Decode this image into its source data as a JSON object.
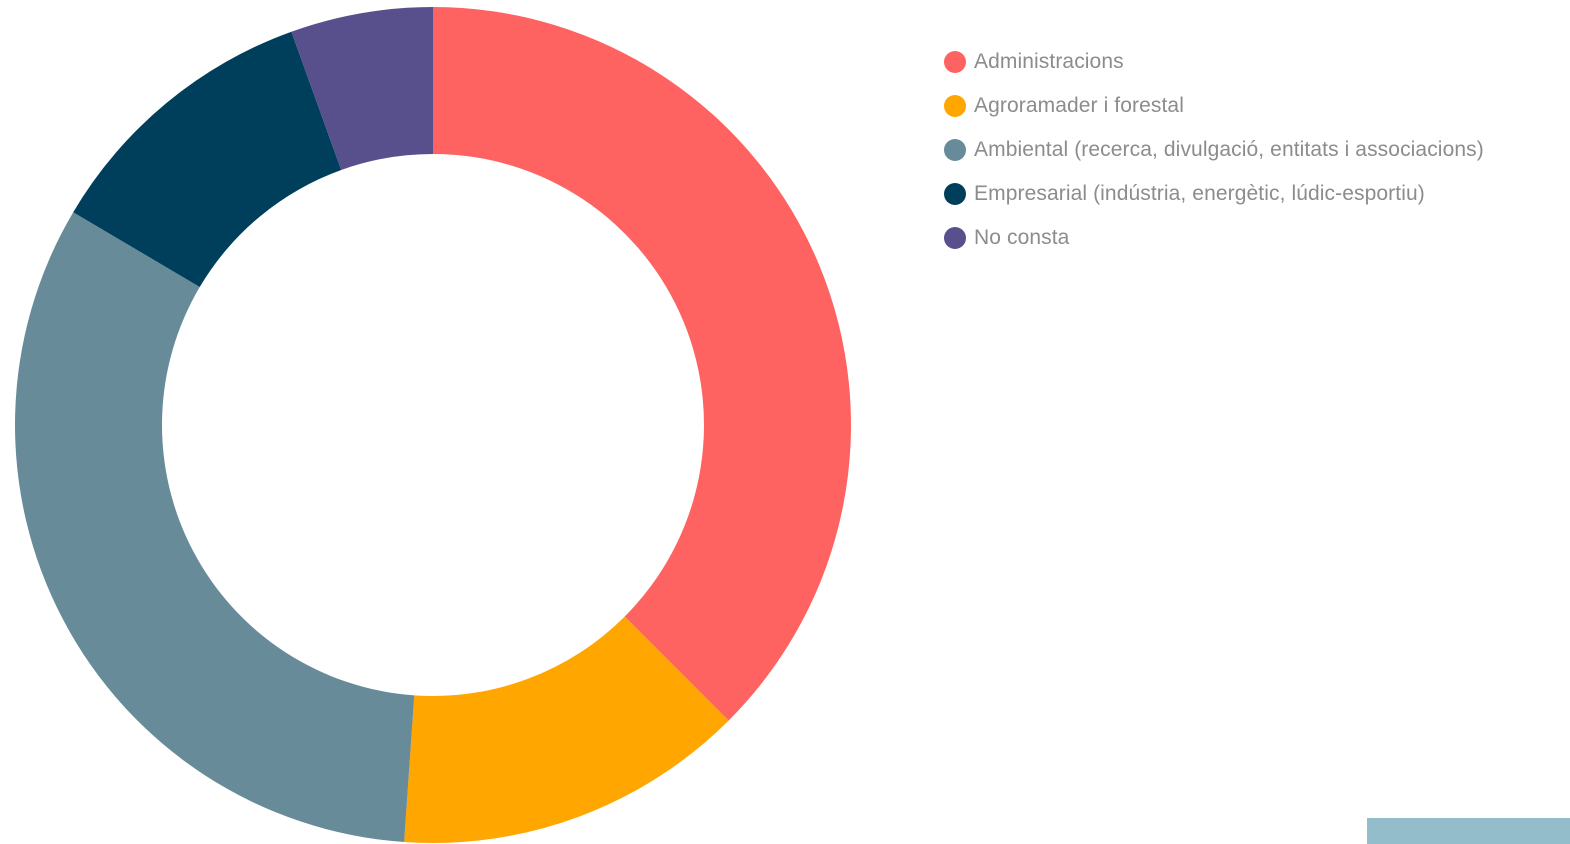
{
  "chart_data": {
    "type": "pie",
    "style": "donut",
    "title": "",
    "categories": [
      "Administracions",
      "Agroramader i forestal",
      "Ambiental (recerca, divulgació, entitats i associacions)",
      "Empresarial (indústria, energètic, lúdic-esportiu)",
      "No consta"
    ],
    "values": [
      37.5,
      13.6,
      32.4,
      11.0,
      5.5
    ],
    "colors": [
      "#ff6361",
      "#ffa600",
      "#688b9a",
      "#003f5c",
      "#58508d"
    ],
    "legend_position": "top-right",
    "show_values": false
  },
  "decor": {
    "corner_block_color": "#93bdca"
  }
}
